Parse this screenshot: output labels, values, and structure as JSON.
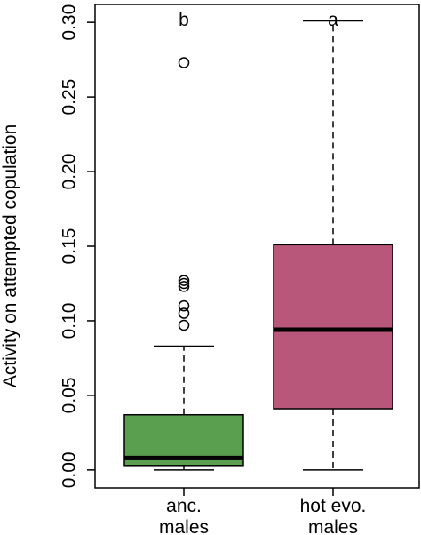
{
  "chart_data": {
    "type": "box",
    "xlabel": "",
    "ylabel": "Activity on attempted copulation",
    "ylim": [
      -0.012,
      0.312
    ],
    "yticks": [
      0.0,
      0.05,
      0.1,
      0.15,
      0.2,
      0.25,
      0.3
    ],
    "ytick_labels": [
      "0.00",
      "0.05",
      "0.10",
      "0.15",
      "0.20",
      "0.25",
      "0.30"
    ],
    "categories": [
      {
        "label_line1": "anc.",
        "label_line2": "males",
        "min": 0.0,
        "q1": 0.003,
        "median": 0.008,
        "q3": 0.037,
        "max": 0.083,
        "outliers": [
          0.097,
          0.105,
          0.11,
          0.123,
          0.125,
          0.127,
          0.273
        ],
        "color": "#5a9e4f",
        "letter": "b"
      },
      {
        "label_line1": "hot evo.",
        "label_line2": "males",
        "min": 0.0,
        "q1": 0.041,
        "median": 0.094,
        "q3": 0.151,
        "max": 0.301,
        "outliers": [],
        "color": "#b8577a",
        "letter": "a"
      }
    ]
  }
}
